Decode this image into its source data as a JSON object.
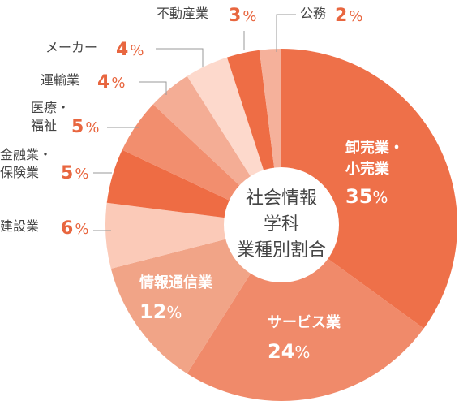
{
  "chart_data": {
    "type": "pie",
    "center_title_lines": [
      "社会情報",
      "学科",
      "業種別割合"
    ],
    "slices": [
      {
        "label_lines": [
          "卸売業・",
          "小売業"
        ],
        "value": 35,
        "value_text": "35",
        "unit": "%",
        "color": "#ee7049",
        "label_placement": "inside"
      },
      {
        "label_lines": [
          "サービス業"
        ],
        "value": 24,
        "value_text": "24",
        "unit": "%",
        "color": "#f08a6a",
        "label_placement": "inside"
      },
      {
        "label_lines": [
          "情報通信業"
        ],
        "value": 12,
        "value_text": "12",
        "unit": "%",
        "color": "#f1a487",
        "label_placement": "inside"
      },
      {
        "label_lines": [
          "建設業"
        ],
        "value": 6,
        "value_text": "6",
        "unit": "%",
        "color": "#fbcab8",
        "label_placement": "outside"
      },
      {
        "label_lines": [
          "金融業・",
          "保険業"
        ],
        "value": 5,
        "value_text": "5",
        "unit": "%",
        "color": "#ee6c44",
        "label_placement": "outside"
      },
      {
        "label_lines": [
          "医療・",
          "福祉"
        ],
        "value": 5,
        "value_text": "5",
        "unit": "%",
        "color": "#f28e6e",
        "label_placement": "outside"
      },
      {
        "label_lines": [
          "運輸業"
        ],
        "value": 4,
        "value_text": "4",
        "unit": "%",
        "color": "#f4ad95",
        "label_placement": "outside"
      },
      {
        "label_lines": [
          "メーカー"
        ],
        "value": 4,
        "value_text": "4",
        "unit": "%",
        "color": "#fdd9cc",
        "label_placement": "outside"
      },
      {
        "label_lines": [
          "不動産業"
        ],
        "value": 3,
        "value_text": "3",
        "unit": "%",
        "color": "#ee6d45",
        "label_placement": "outside"
      },
      {
        "label_lines": [
          "公務"
        ],
        "value": 2,
        "value_text": "2",
        "unit": "%",
        "color": "#f5b19b",
        "label_placement": "outside"
      }
    ],
    "colors": {
      "label_text": "#444444",
      "value_text": "#e8663f",
      "inside_text": "#ffffff",
      "leader_line": "#999999",
      "center_fill": "#ffffff"
    }
  }
}
